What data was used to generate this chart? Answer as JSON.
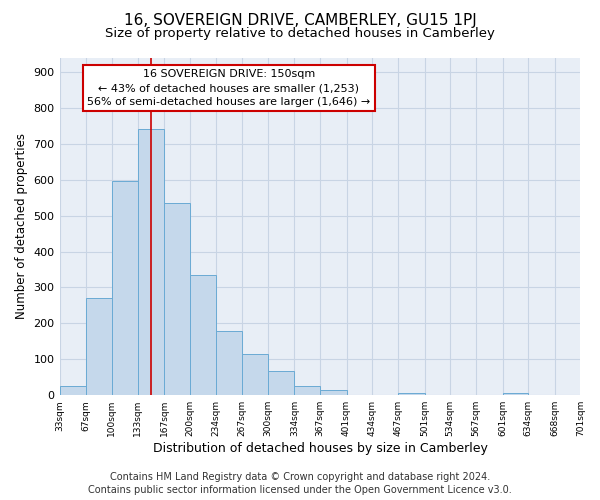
{
  "title": "16, SOVEREIGN DRIVE, CAMBERLEY, GU15 1PJ",
  "subtitle": "Size of property relative to detached houses in Camberley",
  "xlabel": "Distribution of detached houses by size in Camberley",
  "ylabel": "Number of detached properties",
  "footer_line1": "Contains HM Land Registry data © Crown copyright and database right 2024.",
  "footer_line2": "Contains public sector information licensed under the Open Government Licence v3.0.",
  "annotation_line1": "16 SOVEREIGN DRIVE: 150sqm",
  "annotation_line2": "← 43% of detached houses are smaller (1,253)",
  "annotation_line3": "56% of semi-detached houses are larger (1,646) →",
  "bin_edges": [
    33,
    67,
    100,
    133,
    167,
    200,
    234,
    267,
    300,
    334,
    367,
    401,
    434,
    467,
    501,
    534,
    567,
    601,
    634,
    668,
    701
  ],
  "bar_heights": [
    25,
    270,
    595,
    740,
    535,
    335,
    178,
    115,
    67,
    25,
    15,
    0,
    0,
    7,
    0,
    0,
    0,
    7,
    0,
    0
  ],
  "ylim": [
    0,
    940
  ],
  "yticks": [
    0,
    100,
    200,
    300,
    400,
    500,
    600,
    700,
    800,
    900
  ],
  "bar_color": "#c5d8eb",
  "bar_edge_color": "#6aaad4",
  "grid_color": "#c8d4e4",
  "background_color": "#e8eef6",
  "vline_x": 150,
  "vline_color": "#cc0000",
  "annotation_box_color": "#cc0000",
  "title_fontsize": 11,
  "subtitle_fontsize": 9.5,
  "xlabel_fontsize": 9,
  "ylabel_fontsize": 8.5,
  "annotation_fontsize": 8,
  "footer_fontsize": 7,
  "tick_labels": [
    "33sqm",
    "67sqm",
    "100sqm",
    "133sqm",
    "167sqm",
    "200sqm",
    "234sqm",
    "267sqm",
    "300sqm",
    "334sqm",
    "367sqm",
    "401sqm",
    "434sqm",
    "467sqm",
    "501sqm",
    "534sqm",
    "567sqm",
    "601sqm",
    "634sqm",
    "668sqm",
    "701sqm"
  ]
}
